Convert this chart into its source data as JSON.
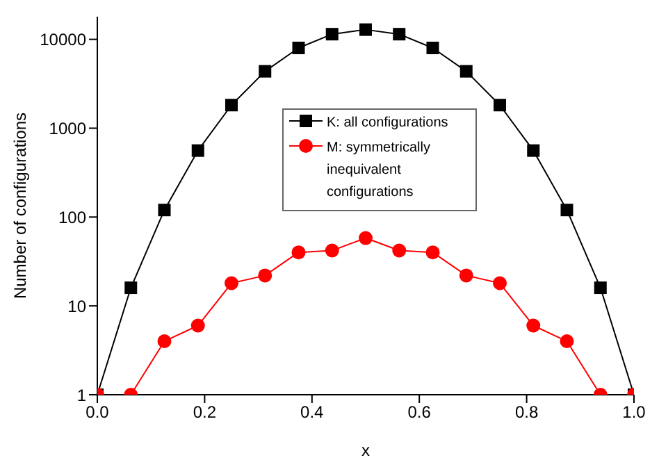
{
  "chart_data": {
    "type": "line",
    "xlabel": "x",
    "ylabel": "Number of configurations",
    "log": "y",
    "xlim": [
      0,
      1
    ],
    "xticks": [
      {
        "value": 0,
        "label": "0.0"
      },
      {
        "value": 0.2,
        "label": "0.2"
      },
      {
        "value": 0.4,
        "label": "0.4"
      },
      {
        "value": 0.6,
        "label": "0.6"
      },
      {
        "value": 0.8,
        "label": "0.8"
      },
      {
        "value": 1,
        "label": "1.0"
      }
    ],
    "ylim": [
      1,
      18000
    ],
    "yticks": [
      1,
      10,
      100,
      1000,
      10000
    ],
    "grid": false,
    "legend": "top",
    "x": [
      0,
      0.0625,
      0.125,
      0.1875,
      0.25,
      0.3125,
      0.375,
      0.4375,
      0.5,
      0.5625,
      0.625,
      0.6875,
      0.75,
      0.8125,
      0.875,
      0.9375,
      1
    ],
    "series": [
      {
        "name": "K: all configurations",
        "color": "#000000",
        "marker": "square",
        "values": [
          1,
          16,
          120,
          560,
          1820,
          4368,
          8008,
          11440,
          12870,
          11440,
          8008,
          4368,
          1820,
          560,
          120,
          16,
          1
        ]
      },
      {
        "name": "M: symmetrically inequivalent configurations",
        "color": "#ff0000",
        "marker": "circle",
        "values": [
          1,
          1,
          4,
          6,
          18,
          22,
          40,
          42,
          58,
          42,
          40,
          22,
          18,
          6,
          4,
          1,
          1
        ]
      }
    ]
  }
}
